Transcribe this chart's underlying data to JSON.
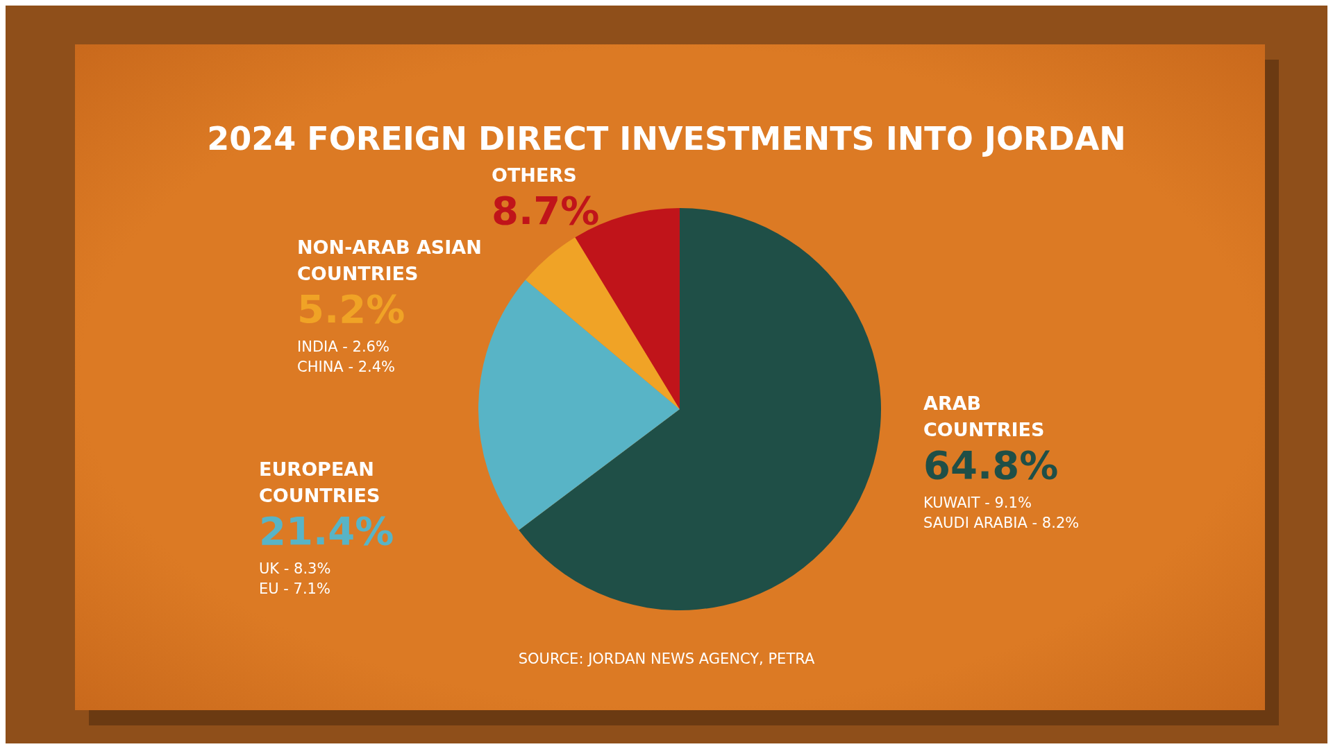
{
  "chart_data": {
    "type": "pie",
    "title": "2024 FOREIGN DIRECT INVESTMENTS INTO JORDAN",
    "categories": [
      "ARAB COUNTRIES",
      "EUROPEAN COUNTRIES",
      "NON-ARAB ASIAN COUNTRIES",
      "OTHERS"
    ],
    "values": [
      64.8,
      21.4,
      5.2,
      8.7
    ],
    "colors": [
      "#1f4f47",
      "#58b4c6",
      "#f0a326",
      "#c0141a"
    ],
    "value_labels": [
      "64.8%",
      "21.4%",
      "5.2%",
      "8.7%"
    ],
    "annotations": [
      "KUWAIT - 9.1%",
      "SAUDI ARABIA - 8.2%",
      "UK - 8.3%",
      "EU - 7.1%",
      "INDIA - 2.6%",
      "CHINA - 2.4%",
      "SOURCE: JORDAN NEWS AGENCY, PETRA"
    ]
  }
}
